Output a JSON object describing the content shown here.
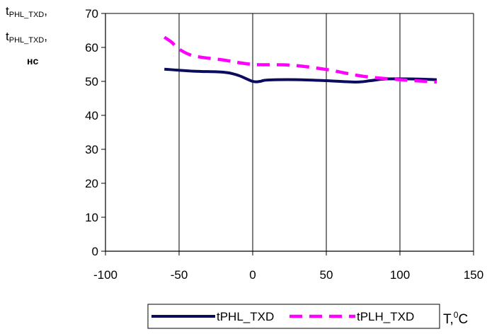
{
  "chart_data": {
    "type": "line",
    "ylabel": {
      "line1_main": "t",
      "line1_sub": "PHL_TXD",
      "line1_tail": ",",
      "line2_main": "t",
      "line2_sub": "PHL_TXD",
      "line2_tail": ",",
      "line3": "нс"
    },
    "xlabel": {
      "main": "T,",
      "sup": "0",
      "tail": "C"
    },
    "xlim": [
      -100,
      150
    ],
    "ylim": [
      0,
      70
    ],
    "x_ticks": [
      -100,
      -50,
      0,
      50,
      100,
      150
    ],
    "y_ticks": [
      0,
      10,
      20,
      30,
      40,
      50,
      60,
      70
    ],
    "grid": "vertical",
    "legend_position": "bottom",
    "series": [
      {
        "name": "tPHL_TXD",
        "color": "#0c0c5e",
        "style": "solid",
        "points": [
          [
            -60,
            53.6
          ],
          [
            -40,
            53.0
          ],
          [
            -20,
            52.7
          ],
          [
            -10,
            51.8
          ],
          [
            0,
            50.0
          ],
          [
            5,
            50.0
          ],
          [
            10,
            50.4
          ],
          [
            30,
            50.5
          ],
          [
            50,
            50.2
          ],
          [
            70,
            49.8
          ],
          [
            80,
            50.2
          ],
          [
            90,
            50.7
          ],
          [
            110,
            50.7
          ],
          [
            125,
            50.5
          ]
        ]
      },
      {
        "name": "tPLH_TXD",
        "color": "#ff00ff",
        "style": "dashed",
        "points": [
          [
            -60,
            63.0
          ],
          [
            -55,
            61.5
          ],
          [
            -50,
            59.5
          ],
          [
            -40,
            57.5
          ],
          [
            -20,
            56.3
          ],
          [
            0,
            55.0
          ],
          [
            25,
            54.8
          ],
          [
            50,
            53.5
          ],
          [
            75,
            51.5
          ],
          [
            100,
            50.5
          ],
          [
            125,
            49.8
          ]
        ]
      }
    ]
  }
}
